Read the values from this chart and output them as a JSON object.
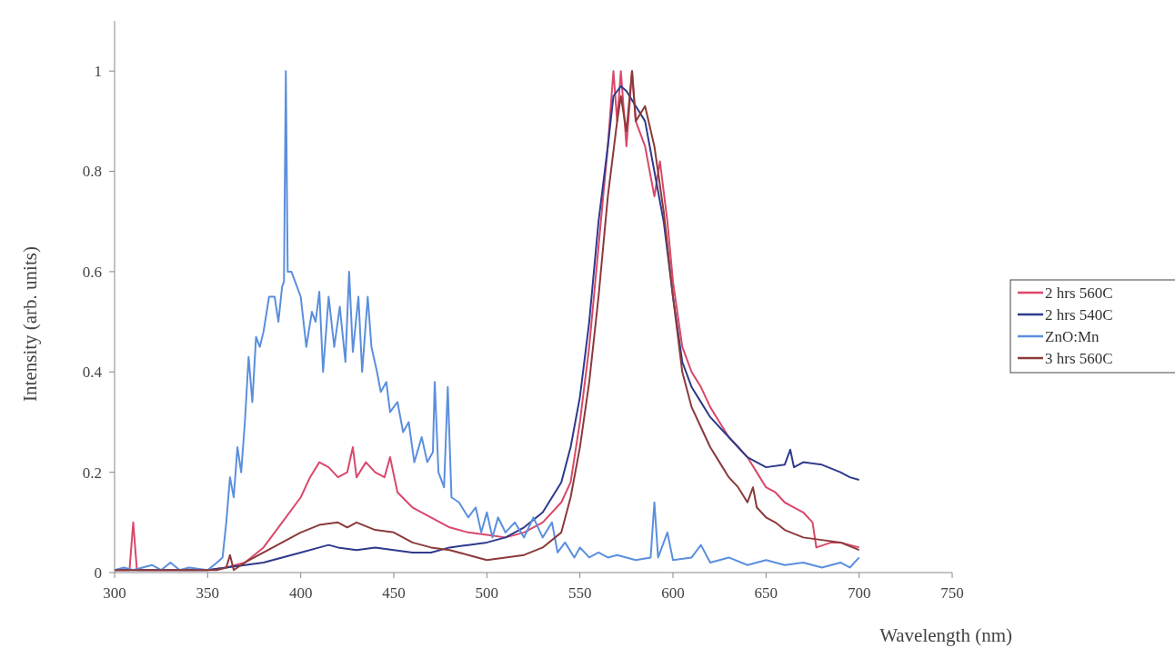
{
  "chart_data": {
    "type": "line",
    "xlabel": "Wavelength (nm)",
    "ylabel": "Intensity (arb. units)",
    "xlim": [
      300,
      750
    ],
    "xticks": [
      300,
      350,
      400,
      450,
      500,
      550,
      600,
      650,
      700,
      750
    ],
    "ylim": [
      0,
      1.1
    ],
    "yticks": [
      0,
      0.2,
      0.4,
      0.6,
      0.8,
      1
    ],
    "grid": false,
    "legend": "right",
    "marker": "none",
    "line_style": "solid",
    "series": [
      {
        "name": "2 hrs 560C",
        "color": "#d9486a",
        "x": [
          300,
          308,
          310,
          312,
          350,
          360,
          370,
          380,
          390,
          400,
          405,
          410,
          415,
          420,
          425,
          428,
          430,
          435,
          440,
          445,
          448,
          452,
          460,
          470,
          480,
          490,
          500,
          510,
          520,
          530,
          540,
          545,
          550,
          555,
          560,
          565,
          568,
          570,
          572,
          575,
          578,
          580,
          585,
          590,
          593,
          597,
          600,
          605,
          610,
          615,
          620,
          625,
          630,
          635,
          640,
          645,
          650,
          655,
          660,
          665,
          670,
          675,
          677,
          685,
          690,
          700
        ],
        "values": [
          0.005,
          0.005,
          0.1,
          0.005,
          0.005,
          0.01,
          0.02,
          0.05,
          0.1,
          0.15,
          0.19,
          0.22,
          0.21,
          0.19,
          0.2,
          0.25,
          0.19,
          0.22,
          0.2,
          0.19,
          0.23,
          0.16,
          0.13,
          0.11,
          0.09,
          0.08,
          0.075,
          0.07,
          0.08,
          0.1,
          0.14,
          0.18,
          0.3,
          0.45,
          0.65,
          0.85,
          1.0,
          0.9,
          1.0,
          0.85,
          1.0,
          0.9,
          0.85,
          0.75,
          0.82,
          0.7,
          0.58,
          0.45,
          0.4,
          0.37,
          0.33,
          0.3,
          0.27,
          0.25,
          0.23,
          0.2,
          0.17,
          0.16,
          0.14,
          0.13,
          0.12,
          0.1,
          0.05,
          0.06,
          0.06,
          0.05
        ]
      },
      {
        "name": "2 hrs 540C",
        "color": "#2e3a8c",
        "x": [
          300,
          350,
          370,
          380,
          390,
          400,
          410,
          415,
          420,
          430,
          440,
          450,
          460,
          470,
          480,
          490,
          500,
          510,
          520,
          530,
          540,
          545,
          550,
          555,
          560,
          565,
          568,
          572,
          575,
          580,
          585,
          590,
          595,
          600,
          605,
          610,
          615,
          620,
          625,
          630,
          635,
          640,
          645,
          650,
          660,
          663,
          665,
          670,
          680,
          690,
          695,
          700
        ],
        "values": [
          0.005,
          0.005,
          0.015,
          0.02,
          0.03,
          0.04,
          0.05,
          0.055,
          0.05,
          0.045,
          0.05,
          0.045,
          0.04,
          0.04,
          0.05,
          0.055,
          0.06,
          0.07,
          0.09,
          0.12,
          0.18,
          0.25,
          0.35,
          0.5,
          0.7,
          0.85,
          0.95,
          0.97,
          0.96,
          0.93,
          0.9,
          0.8,
          0.7,
          0.55,
          0.42,
          0.37,
          0.34,
          0.31,
          0.29,
          0.27,
          0.25,
          0.23,
          0.22,
          0.21,
          0.215,
          0.245,
          0.21,
          0.22,
          0.215,
          0.2,
          0.19,
          0.185
        ]
      },
      {
        "name": "ZnO:Mn",
        "color": "#5b8fdd",
        "x": [
          300,
          305,
          310,
          320,
          325,
          330,
          335,
          340,
          350,
          355,
          358,
          360,
          362,
          364,
          366,
          368,
          370,
          372,
          374,
          376,
          378,
          380,
          383,
          386,
          388,
          390,
          391,
          392,
          393,
          395,
          397,
          400,
          403,
          406,
          408,
          410,
          412,
          415,
          418,
          421,
          424,
          426,
          428,
          431,
          433,
          436,
          438,
          441,
          443,
          446,
          448,
          452,
          455,
          458,
          461,
          465,
          468,
          471,
          472,
          474,
          477,
          479,
          481,
          485,
          490,
          494,
          497,
          500,
          503,
          506,
          510,
          515,
          520,
          525,
          530,
          535,
          538,
          542,
          547,
          550,
          555,
          560,
          565,
          570,
          580,
          588,
          590,
          592,
          597,
          600,
          610,
          615,
          620,
          630,
          640,
          650,
          660,
          670,
          680,
          690,
          695,
          700
        ],
        "values": [
          0.005,
          0.01,
          0.005,
          0.015,
          0.005,
          0.02,
          0.005,
          0.01,
          0.005,
          0.02,
          0.03,
          0.1,
          0.19,
          0.15,
          0.25,
          0.2,
          0.3,
          0.43,
          0.34,
          0.47,
          0.45,
          0.48,
          0.55,
          0.55,
          0.5,
          0.57,
          0.58,
          1.0,
          0.6,
          0.6,
          0.58,
          0.55,
          0.45,
          0.52,
          0.5,
          0.56,
          0.4,
          0.55,
          0.45,
          0.53,
          0.42,
          0.6,
          0.44,
          0.55,
          0.4,
          0.55,
          0.45,
          0.4,
          0.36,
          0.38,
          0.32,
          0.34,
          0.28,
          0.3,
          0.22,
          0.27,
          0.22,
          0.24,
          0.38,
          0.2,
          0.17,
          0.37,
          0.15,
          0.14,
          0.11,
          0.13,
          0.08,
          0.12,
          0.07,
          0.11,
          0.08,
          0.1,
          0.07,
          0.11,
          0.07,
          0.1,
          0.04,
          0.06,
          0.03,
          0.05,
          0.03,
          0.04,
          0.03,
          0.035,
          0.025,
          0.03,
          0.14,
          0.03,
          0.08,
          0.025,
          0.03,
          0.055,
          0.02,
          0.03,
          0.015,
          0.025,
          0.015,
          0.02,
          0.01,
          0.02,
          0.01,
          0.03
        ]
      },
      {
        "name": "3 hrs 560C",
        "color": "#8b3a3a",
        "x": [
          300,
          355,
          360,
          362,
          364,
          370,
          380,
          390,
          400,
          410,
          420,
          425,
          430,
          440,
          450,
          460,
          470,
          480,
          490,
          500,
          510,
          520,
          530,
          540,
          545,
          550,
          555,
          560,
          565,
          570,
          572,
          575,
          578,
          580,
          585,
          590,
          595,
          600,
          605,
          610,
          615,
          620,
          625,
          630,
          635,
          640,
          643,
          645,
          650,
          655,
          660,
          670,
          680,
          690,
          700
        ],
        "values": [
          0.005,
          0.005,
          0.01,
          0.035,
          0.005,
          0.02,
          0.04,
          0.06,
          0.08,
          0.095,
          0.1,
          0.09,
          0.1,
          0.085,
          0.08,
          0.06,
          0.05,
          0.045,
          0.035,
          0.025,
          0.03,
          0.035,
          0.05,
          0.08,
          0.15,
          0.25,
          0.38,
          0.55,
          0.75,
          0.9,
          0.95,
          0.88,
          1.0,
          0.9,
          0.93,
          0.85,
          0.72,
          0.55,
          0.4,
          0.33,
          0.29,
          0.25,
          0.22,
          0.19,
          0.17,
          0.14,
          0.17,
          0.13,
          0.11,
          0.1,
          0.085,
          0.07,
          0.065,
          0.06,
          0.045
        ]
      }
    ]
  }
}
